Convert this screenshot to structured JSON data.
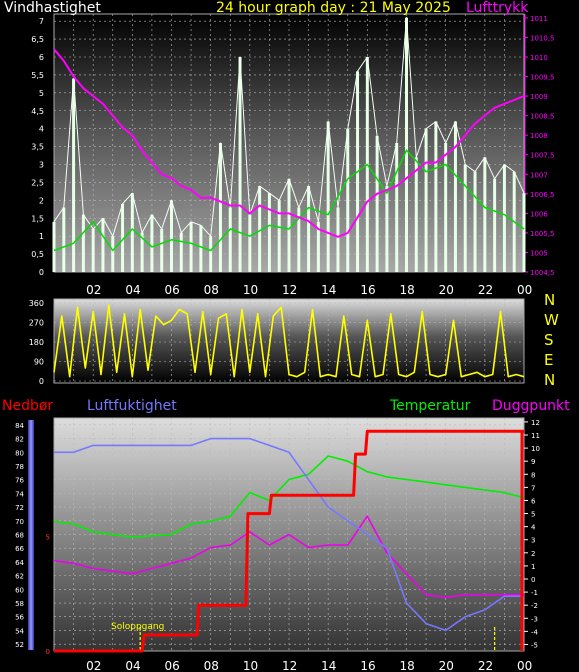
{
  "header": {
    "wind_label": "Vindhastighet",
    "title": "24 hour graph day : 21 May 2025",
    "pressure_label": "Lufttrykk"
  },
  "colors": {
    "wind_gust": "#ffffff",
    "wind_mean": "#00dd00",
    "pressure": "#ff00ff",
    "direction": "#ffff00",
    "rain": "#ff0000",
    "humidity": "#7777ff",
    "temperature": "#00ee00",
    "dewpoint": "#ee00ee",
    "axis_text_left": "#ffffff",
    "axis_text_right": "#ff00ff"
  },
  "x_tick_labels": [
    "02",
    "04",
    "06",
    "08",
    "10",
    "12",
    "14",
    "16",
    "18",
    "20",
    "22",
    "00"
  ],
  "chart_data": [
    {
      "type": "line",
      "id": "wind_pressure",
      "x_hours": [
        0,
        24
      ],
      "y_left_label": "Vindhastighet",
      "y_left_ticks": [
        "0",
        "0,5",
        "1",
        "1,5",
        "2",
        "2,5",
        "3",
        "3,5",
        "4",
        "4,5",
        "5",
        "5,5",
        "6",
        "6,5",
        "7"
      ],
      "y_left_range": [
        0,
        7.2
      ],
      "y_right_label": "Lufttrykk",
      "y_right_ticks": [
        "1004,5",
        "1005",
        "1005,5",
        "1006",
        "1006,5",
        "1007",
        "1007,5",
        "1008",
        "1008,5",
        "1009",
        "1009,5",
        "1010",
        "1010,5",
        "1011"
      ],
      "y_right_range": [
        1004.5,
        1011.1
      ],
      "series": [
        {
          "name": "Vindhastighet",
          "kind": "gust",
          "x": [
            0,
            0.5,
            1,
            1.5,
            2,
            2.5,
            3,
            3.5,
            4,
            4.5,
            5,
            5.5,
            6,
            6.5,
            7,
            7.5,
            8,
            8.5,
            9,
            9.5,
            10,
            10.5,
            11,
            11.5,
            12,
            12.5,
            13,
            13.5,
            14,
            14.5,
            15,
            15.5,
            16,
            16.5,
            17,
            17.5,
            18,
            18.5,
            19,
            19.5,
            20,
            20.5,
            21,
            21.5,
            22,
            22.5,
            23,
            23.5,
            24
          ],
          "y": [
            1.4,
            1.8,
            5.4,
            1.6,
            1.2,
            1.5,
            1.0,
            1.9,
            2.2,
            1.1,
            1.6,
            1.2,
            2.0,
            1.1,
            1.4,
            1.3,
            1.0,
            3.6,
            1.8,
            6.0,
            1.6,
            2.4,
            2.2,
            2.0,
            2.6,
            1.8,
            2.4,
            1.4,
            4.2,
            1.8,
            4.0,
            5.6,
            6.0,
            3.8,
            2.4,
            3.6,
            7.1,
            3.2,
            4.0,
            4.2,
            3.6,
            4.2,
            3.0,
            2.8,
            3.2,
            2.6,
            3.0,
            2.8,
            2.2
          ]
        },
        {
          "name": "Vindhastighet middel",
          "kind": "mean",
          "x": [
            0,
            1,
            2,
            3,
            4,
            5,
            6,
            7,
            8,
            9,
            10,
            11,
            12,
            13,
            14,
            15,
            16,
            17,
            18,
            19,
            20,
            21,
            22,
            23,
            24
          ],
          "y": [
            0.6,
            0.8,
            1.4,
            0.6,
            1.2,
            0.7,
            0.9,
            0.8,
            0.6,
            1.2,
            1.0,
            1.3,
            1.2,
            1.8,
            1.6,
            2.6,
            3.0,
            2.2,
            3.4,
            2.8,
            3.0,
            2.4,
            1.8,
            1.6,
            1.2
          ]
        },
        {
          "name": "Lufttrykk",
          "kind": "pressure",
          "x": [
            0,
            0.5,
            1,
            1.5,
            2,
            2.5,
            3,
            3.5,
            4,
            4.5,
            5,
            5.5,
            6,
            6.5,
            7,
            7.5,
            8,
            8.5,
            9,
            9.5,
            10,
            10.5,
            11,
            11.5,
            12,
            12.5,
            13,
            13.5,
            14,
            14.5,
            15,
            15.5,
            16,
            16.5,
            17,
            17.5,
            18,
            18.5,
            19,
            19.5,
            20,
            20.5,
            21,
            21.5,
            22,
            22.5,
            23,
            23.5,
            24
          ],
          "y": [
            1010.2,
            1009.9,
            1009.5,
            1009.2,
            1009.0,
            1008.8,
            1008.5,
            1008.2,
            1008.0,
            1007.6,
            1007.3,
            1007.0,
            1006.9,
            1006.7,
            1006.6,
            1006.4,
            1006.4,
            1006.3,
            1006.2,
            1006.2,
            1006.0,
            1006.2,
            1006.1,
            1006.0,
            1006.0,
            1005.9,
            1005.8,
            1005.6,
            1005.5,
            1005.4,
            1005.5,
            1005.9,
            1006.3,
            1006.5,
            1006.6,
            1006.7,
            1006.9,
            1007.1,
            1007.3,
            1007.3,
            1007.5,
            1007.7,
            1008.0,
            1008.3,
            1008.5,
            1008.7,
            1008.8,
            1008.9,
            1009.0
          ]
        }
      ]
    },
    {
      "type": "line",
      "id": "direction",
      "x_hours": [
        0,
        24
      ],
      "y_ticks": [
        "0",
        "90",
        "180",
        "270",
        "360"
      ],
      "y_range": [
        0,
        360
      ],
      "compass_labels": [
        "N",
        "W",
        "S",
        "E",
        "N"
      ],
      "series": [
        {
          "name": "Vindretning",
          "x": [
            0,
            0.4,
            0.8,
            1.2,
            1.6,
            2,
            2.4,
            2.8,
            3.2,
            3.6,
            4,
            4.4,
            4.8,
            5.2,
            5.6,
            6,
            6.4,
            6.8,
            7.2,
            7.6,
            8,
            8.4,
            8.8,
            9.2,
            9.6,
            10,
            10.4,
            10.8,
            11.2,
            11.6,
            12,
            12.4,
            12.8,
            13.2,
            13.6,
            14,
            14.4,
            14.8,
            15.2,
            15.6,
            16,
            16.4,
            16.8,
            17.2,
            17.6,
            18,
            18.4,
            18.8,
            19.2,
            19.6,
            20,
            20.4,
            20.8,
            21.2,
            21.6,
            22,
            22.4,
            22.8,
            23.2,
            23.6,
            24
          ],
          "y": [
            40,
            300,
            20,
            340,
            60,
            320,
            30,
            350,
            40,
            310,
            20,
            330,
            50,
            300,
            260,
            280,
            330,
            310,
            40,
            320,
            30,
            290,
            310,
            20,
            330,
            40,
            310,
            20,
            300,
            340,
            30,
            20,
            40,
            330,
            20,
            30,
            20,
            300,
            30,
            20,
            280,
            20,
            30,
            310,
            30,
            20,
            40,
            320,
            30,
            20,
            30,
            280,
            20,
            30,
            40,
            20,
            30,
            320,
            20,
            30,
            20
          ]
        }
      ]
    },
    {
      "type": "line",
      "id": "humidity_temperature",
      "x_hours": [
        0,
        24
      ],
      "left_labels": [
        "Nedbør",
        "Luftfuktighet"
      ],
      "right_labels": [
        "Temperatur",
        "Duggpunkt"
      ],
      "y_rain_ticks": [
        "0",
        "5"
      ],
      "y_rain_range": [
        0,
        10
      ],
      "y_humidity_ticks": [
        "52",
        "54",
        "56",
        "58",
        "60",
        "62",
        "64",
        "66",
        "68",
        "70",
        "72",
        "74",
        "76",
        "78",
        "80",
        "82",
        "84"
      ],
      "y_humidity_range": [
        51,
        85
      ],
      "y_temp_ticks": [
        "-5",
        "-4",
        "-3",
        "-2",
        "-1",
        "0",
        "1",
        "2",
        "3",
        "4",
        "5",
        "6",
        "7",
        "8",
        "9",
        "10",
        "11",
        "12"
      ],
      "y_temp_range": [
        -5.5,
        12.3
      ],
      "annotation": "Soloppgang",
      "series": [
        {
          "name": "Nedbør",
          "x": [
            0,
            4.5,
            4.6,
            7.3,
            7.4,
            9.8,
            9.9,
            11.0,
            11.1,
            15.3,
            15.4,
            15.9,
            16.0,
            24.0
          ],
          "y": [
            0,
            0,
            0.7,
            0.7,
            2.0,
            2.0,
            6.0,
            6.0,
            6.8,
            6.8,
            8.6,
            8.6,
            9.6,
            9.6
          ]
        },
        {
          "name": "Luftfuktighet",
          "x": [
            0,
            1,
            2,
            3,
            4,
            5,
            6,
            7,
            8,
            9,
            10,
            11,
            12,
            13,
            14,
            15,
            16,
            17,
            18,
            19,
            20,
            21,
            22,
            23,
            24
          ],
          "y": [
            80,
            80,
            81,
            81,
            81,
            81,
            81,
            81,
            82,
            82,
            82,
            81,
            80,
            76,
            72,
            70,
            68,
            66,
            58,
            55,
            54,
            56,
            57,
            59,
            59
          ]
        },
        {
          "name": "Temperatur",
          "x": [
            0,
            1,
            2,
            3,
            4,
            5,
            6,
            7,
            8,
            9,
            10,
            11,
            12,
            13,
            14,
            15,
            16,
            17,
            18,
            19,
            20,
            21,
            22,
            23,
            24
          ],
          "y": [
            4.4,
            4.2,
            3.6,
            3.4,
            3.2,
            3.3,
            3.4,
            4.2,
            4.4,
            4.8,
            6.6,
            6.0,
            7.6,
            8.0,
            9.4,
            9.0,
            8.2,
            7.8,
            7.6,
            7.4,
            7.2,
            7.0,
            6.8,
            6.6,
            6.2
          ]
        },
        {
          "name": "Duggpunkt",
          "x": [
            0,
            1,
            2,
            3,
            4,
            5,
            6,
            7,
            8,
            9,
            10,
            11,
            12,
            13,
            14,
            15,
            16,
            17,
            18,
            19,
            20,
            21,
            22,
            23,
            24
          ],
          "y": [
            1.4,
            1.2,
            0.8,
            0.6,
            0.4,
            0.8,
            1.2,
            1.6,
            2.4,
            2.6,
            3.6,
            2.6,
            3.4,
            2.4,
            2.6,
            2.6,
            4.8,
            2.0,
            0.4,
            -1.2,
            -1.4,
            -1.2,
            -1.2,
            -1.2,
            -1.2
          ]
        }
      ]
    }
  ]
}
